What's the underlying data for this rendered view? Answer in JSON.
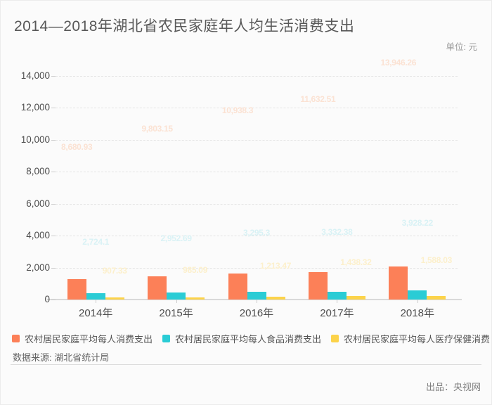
{
  "page": {
    "title": "2014—2018年湖北省农民家庭年人均生活消费支出",
    "unit": "单位: 元"
  },
  "chart_data": {
    "type": "bar",
    "title": "2014—2018年湖北省农民家庭年人均生活消费支出",
    "unit": "元",
    "categories": [
      "2014年",
      "2015年",
      "2016年",
      "2017年",
      "2018年"
    ],
    "series": [
      {
        "name": "农村居民家庭平均每人消费支出",
        "color": "#fc8058",
        "label_color": "#fbe2d3",
        "values": [
          8680.93,
          9803.15,
          10938.3,
          11632.51,
          13946.26
        ],
        "labels": [
          "8,680.93",
          "9,803.15",
          "10,938.3",
          "11,632.51",
          "13,946.26"
        ]
      },
      {
        "name": "农村居民家庭平均每人食品消费支出",
        "color": "#2accd5",
        "label_color": "#d9f2f5",
        "values": [
          2724.1,
          2952.69,
          3295.3,
          3332.38,
          3928.22
        ],
        "labels": [
          "2,724.1",
          "2,952.69",
          "3,295.3",
          "3,332.38",
          "3,928.22"
        ]
      },
      {
        "name": "农村居民家庭平均每人医疗保健消费",
        "color": "#fcd34a",
        "label_color": "#fcf0cc",
        "values": [
          907.33,
          985.09,
          1213.47,
          1438.32,
          1588.03
        ],
        "labels": [
          "907.33",
          "985.09",
          "1,213.47",
          "1,438.32",
          "1,588.03"
        ]
      }
    ],
    "y_axis": {
      "ticks": [
        0,
        2000,
        4000,
        6000,
        8000,
        10000,
        12000,
        14000
      ],
      "tick_labels": [
        "0",
        "2,000",
        "4,000",
        "6,000",
        "8,000",
        "10,000",
        "12,000",
        "14,000"
      ]
    },
    "ylim": [
      0,
      14000
    ],
    "grid": true,
    "legend_position": "bottom",
    "note": "bars captured mid-animation; rendered bar heights are ~14.8% of the labeled final values",
    "animation_progress": 0.148
  },
  "footer": {
    "source": "数据来源: 湖北省统计局",
    "producer": "出品：央视网"
  }
}
